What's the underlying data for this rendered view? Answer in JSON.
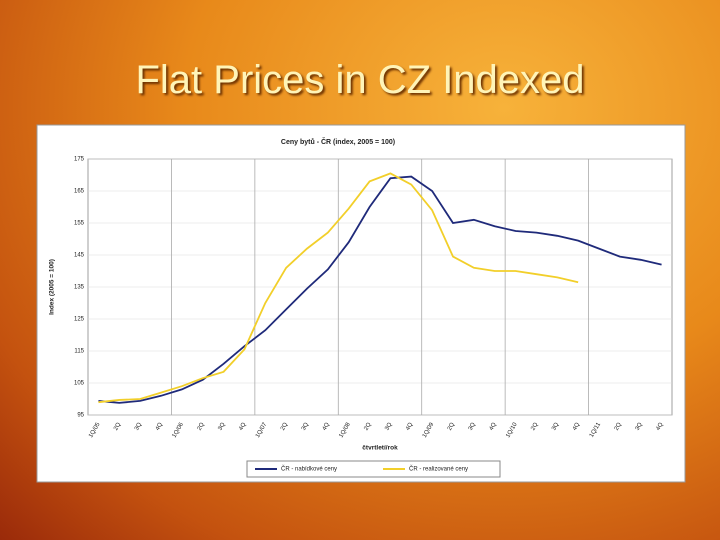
{
  "slide_title": "Flat Prices in CZ Indexed",
  "chart_data": {
    "type": "line",
    "title": "Ceny bytů - ČR (index, 2005 = 100)",
    "x_label": "čtvrtletí/rok",
    "y_label": "Index (2005 = 100)",
    "categories": [
      "1Q/05",
      "2Q",
      "3Q",
      "4Q",
      "1Q/06",
      "2Q",
      "3Q",
      "4Q",
      "1Q/07",
      "2Q",
      "3Q",
      "4Q",
      "1Q/08",
      "2Q",
      "3Q",
      "4Q",
      "1Q/09",
      "2Q",
      "3Q",
      "4Q",
      "1Q/10",
      "2Q",
      "3Q",
      "4Q",
      "1Q/11",
      "2Q",
      "3Q",
      "4Q"
    ],
    "series": [
      {
        "name": "ČR - nabídkové ceny",
        "color": "#1f2a7a",
        "values": [
          99.4,
          98.8,
          99.4,
          101,
          103,
          106,
          111,
          116.5,
          121.5,
          128,
          134.5,
          140.5,
          149,
          160,
          169,
          169.5,
          165,
          155,
          156,
          154,
          152.5,
          152,
          151,
          149.5,
          147,
          144.5,
          143.5,
          142
        ]
      },
      {
        "name": "ČR - realizované ceny",
        "color": "#f2cf2a",
        "values": [
          99,
          99.7,
          100,
          102,
          104,
          106.5,
          108.5,
          115.5,
          130,
          141,
          147,
          152,
          159.5,
          168,
          170.5,
          167,
          159,
          144.5,
          141,
          140,
          140,
          139,
          138,
          136.5,
          null,
          null,
          null,
          null
        ]
      }
    ],
    "ylim": [
      95,
      175
    ],
    "yticks": [
      95,
      105,
      115,
      125,
      135,
      145,
      155,
      165,
      175
    ],
    "grid": true,
    "legend": "bottom"
  }
}
